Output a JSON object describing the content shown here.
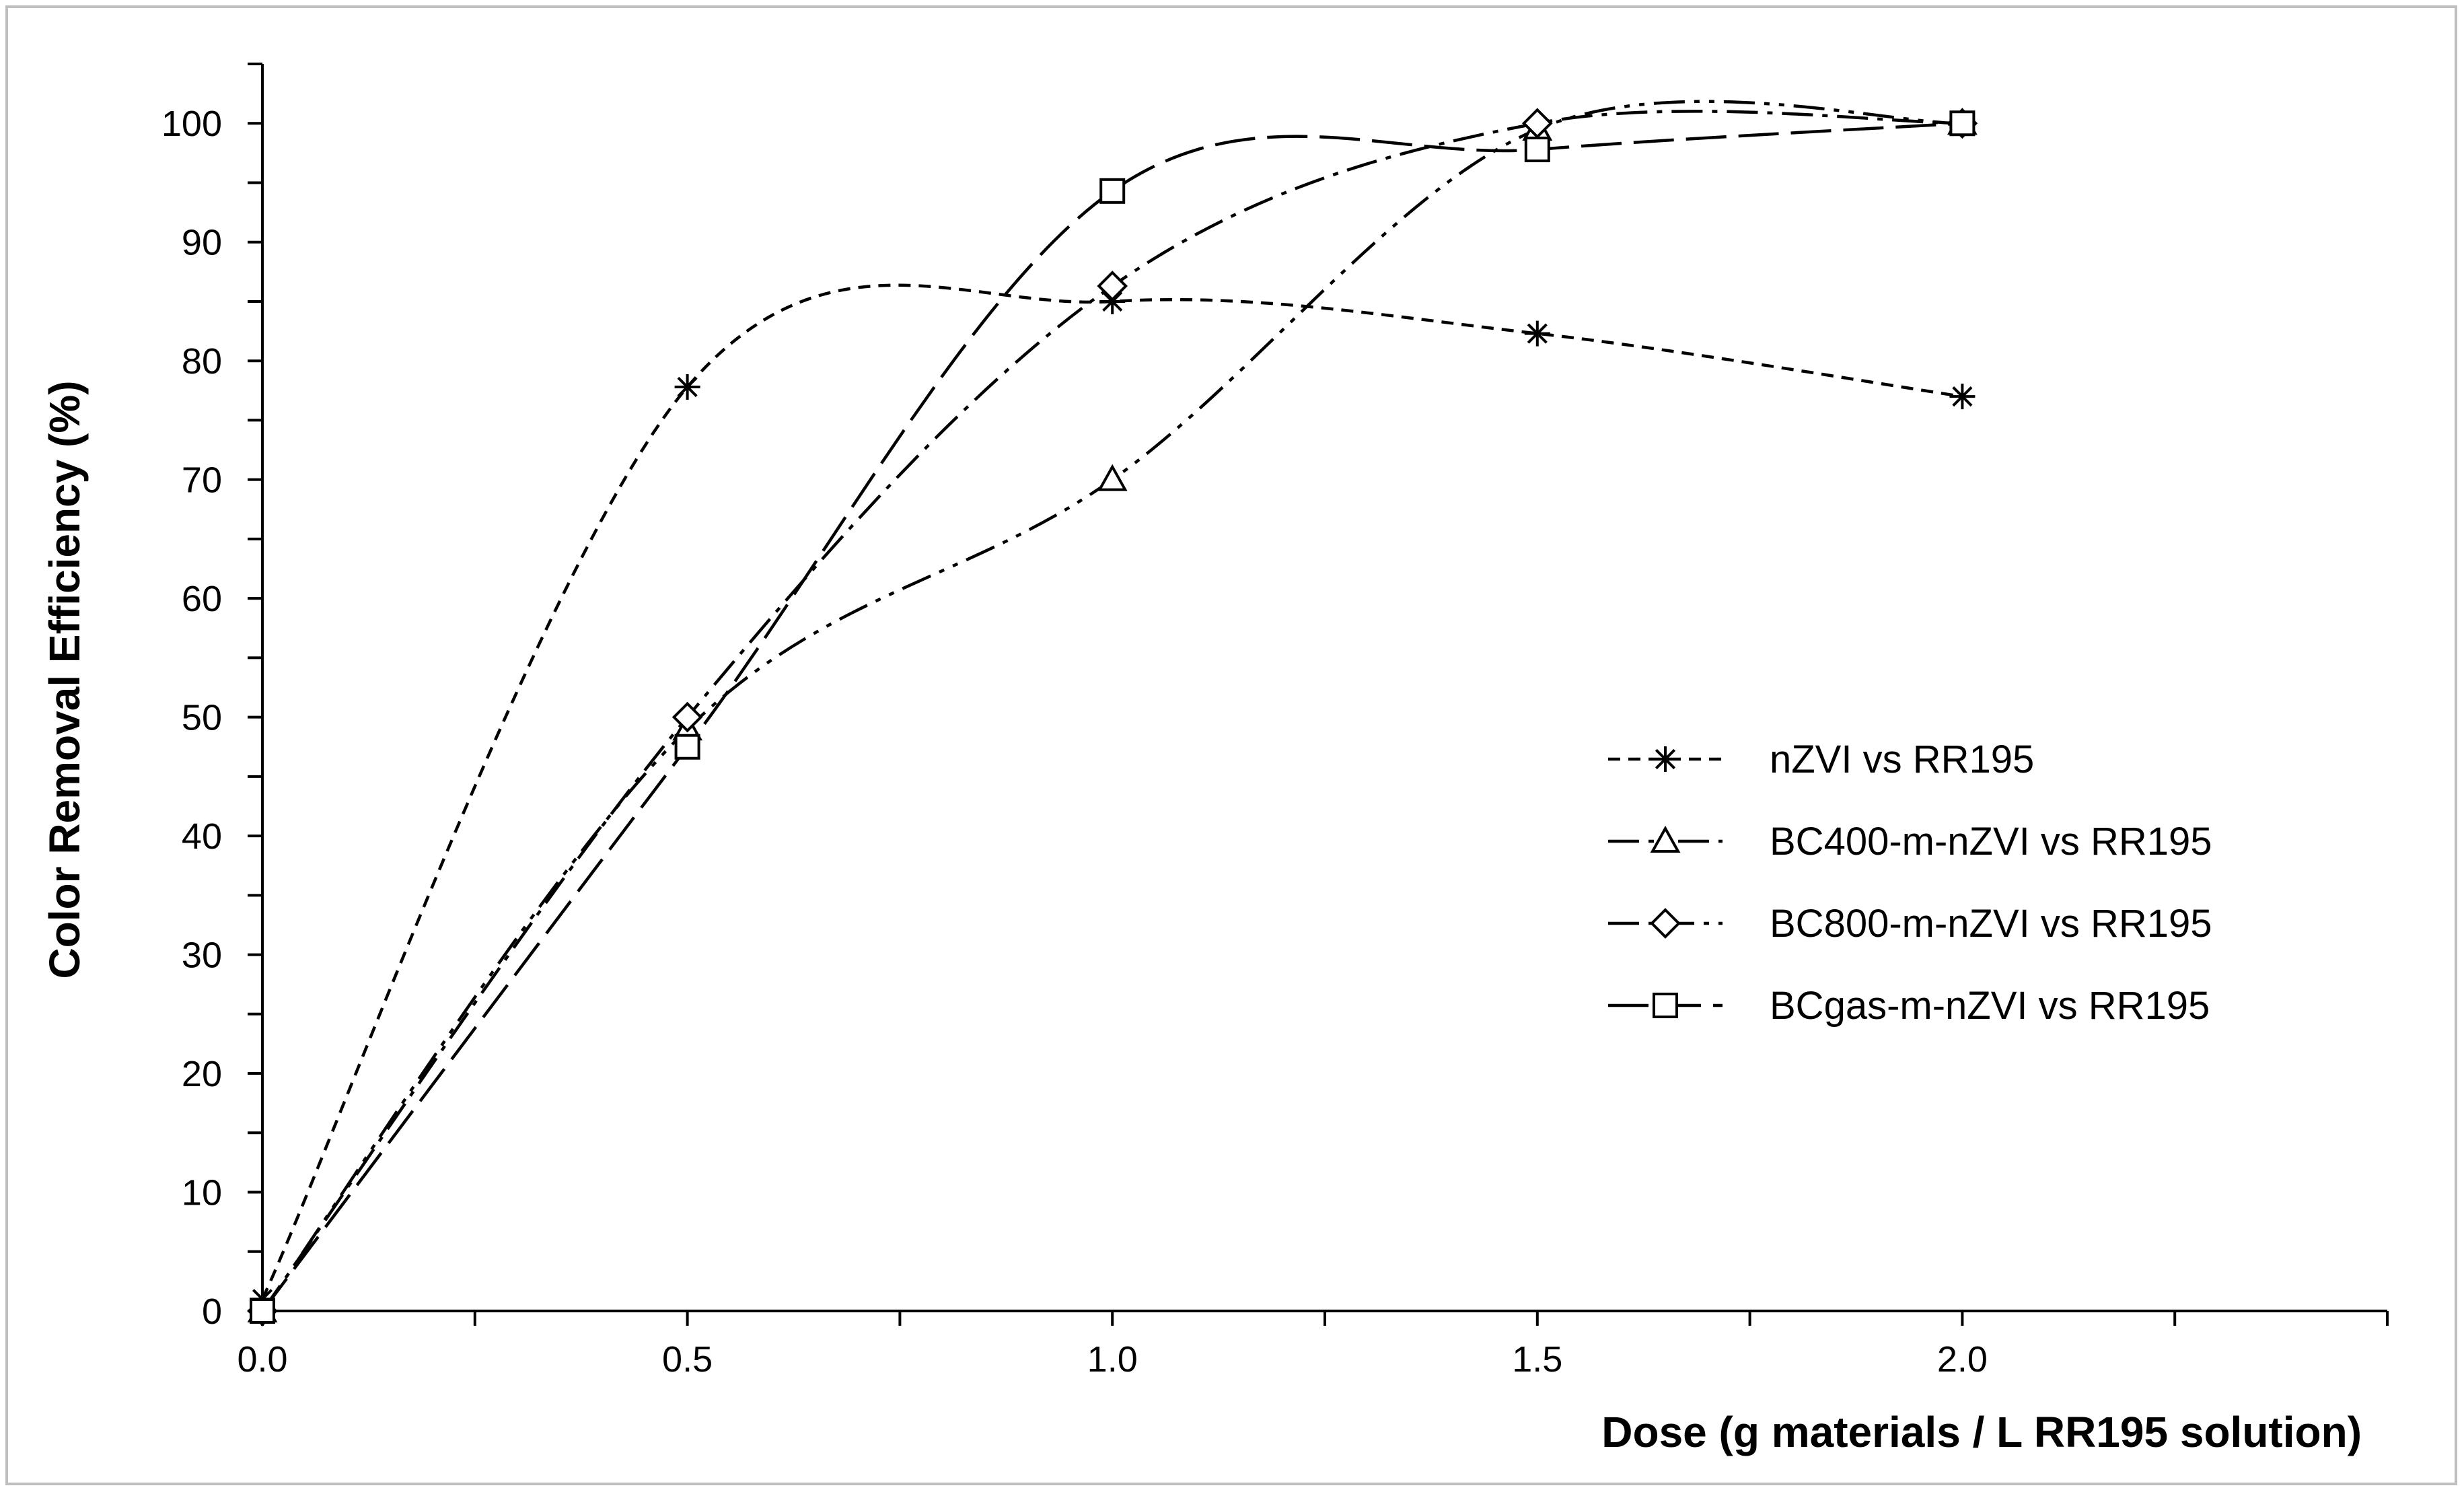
{
  "chart_data": {
    "type": "line",
    "title": "",
    "xlabel": "Dose (g materials / L RR195 solution)",
    "ylabel": "Color Removal Efficiency (%)",
    "xlim": [
      0,
      2.5
    ],
    "ylim": [
      0,
      105
    ],
    "x_ticks": [
      "0.0",
      "0.5",
      "1.0",
      "1.5",
      "2.0"
    ],
    "x_tick_values": [
      0,
      0.5,
      1.0,
      1.5,
      2.0
    ],
    "y_ticks": [
      "0",
      "10",
      "20",
      "30",
      "40",
      "50",
      "60",
      "70",
      "80",
      "90",
      "100"
    ],
    "y_tick_values": [
      0,
      10,
      20,
      30,
      40,
      50,
      60,
      70,
      80,
      90,
      100
    ],
    "grid": false,
    "smooth": true,
    "legend_position": "right",
    "series": [
      {
        "name": "nZVI vs RR195",
        "marker": "asterisk",
        "dash": "short-dash",
        "x": [
          0,
          0.5,
          1.0,
          1.5,
          2.0
        ],
        "values": [
          1,
          77.8,
          85,
          82.3,
          77
        ]
      },
      {
        "name": "BC400-m-nZVI vs RR195",
        "marker": "triangle",
        "dash": "dash-dot-dot",
        "x": [
          0,
          0.5,
          1.0,
          1.5,
          2.0
        ],
        "values": [
          0,
          49,
          70,
          99.5,
          100
        ]
      },
      {
        "name": "BC800-m-nZVI vs RR195",
        "marker": "diamond",
        "dash": "dash-dot",
        "x": [
          0,
          0.5,
          1.0,
          1.5,
          2.0
        ],
        "values": [
          0,
          50,
          86.3,
          100,
          100
        ]
      },
      {
        "name": "BCgas-m-nZVI vs RR195",
        "marker": "square",
        "dash": "long-dash",
        "x": [
          0,
          0.5,
          1.0,
          1.5,
          2.0
        ],
        "values": [
          0,
          47.5,
          94.3,
          97.8,
          100
        ]
      }
    ],
    "colors": {
      "line": "#000000",
      "marker_fill": "#ffffff",
      "frame": "#bfbfbf"
    }
  }
}
